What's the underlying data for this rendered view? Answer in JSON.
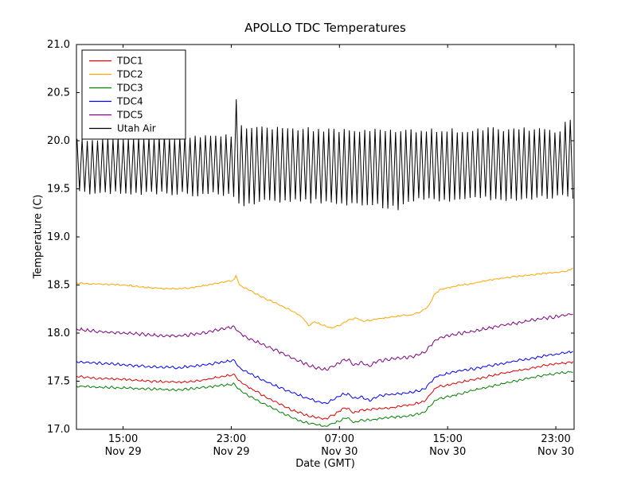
{
  "chart_data": {
    "type": "line",
    "title": "APOLLO TDC Temperatures",
    "xlabel": "Date (GMT)",
    "ylabel": "Temperature (C)",
    "x_unit": "hours since Nov 29 00:00 GMT",
    "xlim": [
      11.55,
      48.35
    ],
    "ylim": [
      17.0,
      21.0
    ],
    "grid": false,
    "legend_position": "upper-left",
    "yticks": [
      {
        "v": 17.0,
        "label": "17.0"
      },
      {
        "v": 17.5,
        "label": "17.5"
      },
      {
        "v": 18.0,
        "label": "18.0"
      },
      {
        "v": 18.5,
        "label": "18.5"
      },
      {
        "v": 19.0,
        "label": "19.0"
      },
      {
        "v": 19.5,
        "label": "19.5"
      },
      {
        "v": 20.0,
        "label": "20.0"
      },
      {
        "v": 20.5,
        "label": "20.5"
      },
      {
        "v": 21.0,
        "label": "21.0"
      }
    ],
    "xticks": [
      {
        "t": 15,
        "time": "15:00",
        "date": "Nov 29"
      },
      {
        "t": 23,
        "time": "23:00",
        "date": "Nov 29"
      },
      {
        "t": 31,
        "time": "07:00",
        "date": "Nov 30"
      },
      {
        "t": 39,
        "time": "15:00",
        "date": "Nov 30"
      },
      {
        "t": 47,
        "time": "23:00",
        "date": "Nov 30"
      }
    ],
    "series": [
      {
        "name": "TDC1",
        "color": "#e00000",
        "ripple": 0.01,
        "noise": 0.012,
        "ripple_period": 0.45,
        "points": [
          [
            11.55,
            17.55
          ],
          [
            13,
            17.53
          ],
          [
            15,
            17.52
          ],
          [
            17,
            17.5
          ],
          [
            19,
            17.49
          ],
          [
            20.5,
            17.5
          ],
          [
            22,
            17.54
          ],
          [
            23.2,
            17.57
          ],
          [
            23.6,
            17.5
          ],
          [
            24.5,
            17.42
          ],
          [
            25.5,
            17.34
          ],
          [
            26.5,
            17.27
          ],
          [
            27.5,
            17.2
          ],
          [
            28.5,
            17.15
          ],
          [
            29.3,
            17.12
          ],
          [
            30,
            17.11
          ],
          [
            30.7,
            17.16
          ],
          [
            31.2,
            17.21
          ],
          [
            31.6,
            17.22
          ],
          [
            32.1,
            17.17
          ],
          [
            32.6,
            17.2
          ],
          [
            33.5,
            17.21
          ],
          [
            34.5,
            17.22
          ],
          [
            35.5,
            17.24
          ],
          [
            36.5,
            17.26
          ],
          [
            37.3,
            17.29
          ],
          [
            37.8,
            17.38
          ],
          [
            38.2,
            17.44
          ],
          [
            39,
            17.46
          ],
          [
            40,
            17.49
          ],
          [
            41,
            17.52
          ],
          [
            42,
            17.55
          ],
          [
            43,
            17.58
          ],
          [
            44,
            17.61
          ],
          [
            45,
            17.63
          ],
          [
            46,
            17.66
          ],
          [
            47,
            17.68
          ],
          [
            48.3,
            17.7
          ]
        ]
      },
      {
        "name": "TDC2",
        "color": "#ffa500",
        "ripple": 0.006,
        "noise": 0.01,
        "ripple_period": 0.45,
        "points": [
          [
            11.55,
            18.52
          ],
          [
            13,
            18.51
          ],
          [
            15,
            18.5
          ],
          [
            17,
            18.47
          ],
          [
            19,
            18.46
          ],
          [
            20.5,
            18.48
          ],
          [
            22,
            18.52
          ],
          [
            23.2,
            18.55
          ],
          [
            23.35,
            18.6
          ],
          [
            23.6,
            18.5
          ],
          [
            24.5,
            18.43
          ],
          [
            25.5,
            18.36
          ],
          [
            26.5,
            18.3
          ],
          [
            27.5,
            18.23
          ],
          [
            28.3,
            18.16
          ],
          [
            28.7,
            18.08
          ],
          [
            29.2,
            18.12
          ],
          [
            29.8,
            18.08
          ],
          [
            30.4,
            18.05
          ],
          [
            31,
            18.08
          ],
          [
            31.6,
            18.13
          ],
          [
            32.2,
            18.16
          ],
          [
            32.8,
            18.12
          ],
          [
            33.5,
            18.14
          ],
          [
            34.5,
            18.16
          ],
          [
            35.5,
            18.18
          ],
          [
            36.3,
            18.19
          ],
          [
            37,
            18.22
          ],
          [
            37.6,
            18.28
          ],
          [
            38,
            18.4
          ],
          [
            38.4,
            18.45
          ],
          [
            39,
            18.47
          ],
          [
            40,
            18.5
          ],
          [
            41,
            18.52
          ],
          [
            42,
            18.55
          ],
          [
            43,
            18.57
          ],
          [
            44,
            18.59
          ],
          [
            45,
            18.6
          ],
          [
            46,
            18.62
          ],
          [
            47,
            18.63
          ],
          [
            47.8,
            18.64
          ],
          [
            48.3,
            18.68
          ]
        ]
      },
      {
        "name": "TDC3",
        "color": "#008000",
        "ripple": 0.01,
        "noise": 0.012,
        "ripple_period": 0.45,
        "points": [
          [
            11.55,
            17.45
          ],
          [
            13,
            17.44
          ],
          [
            15,
            17.43
          ],
          [
            17,
            17.42
          ],
          [
            19,
            17.41
          ],
          [
            20.5,
            17.43
          ],
          [
            22,
            17.45
          ],
          [
            23.2,
            17.47
          ],
          [
            23.6,
            17.41
          ],
          [
            24.5,
            17.33
          ],
          [
            25.5,
            17.26
          ],
          [
            26.5,
            17.19
          ],
          [
            27.5,
            17.12
          ],
          [
            28.5,
            17.07
          ],
          [
            29.3,
            17.05
          ],
          [
            30,
            17.03
          ],
          [
            30.7,
            17.07
          ],
          [
            31.2,
            17.1
          ],
          [
            31.6,
            17.12
          ],
          [
            32.1,
            17.07
          ],
          [
            32.6,
            17.09
          ],
          [
            33.5,
            17.1
          ],
          [
            34.5,
            17.12
          ],
          [
            35.5,
            17.13
          ],
          [
            36.5,
            17.15
          ],
          [
            37.3,
            17.18
          ],
          [
            37.8,
            17.26
          ],
          [
            38.2,
            17.31
          ],
          [
            39,
            17.34
          ],
          [
            40,
            17.37
          ],
          [
            41,
            17.41
          ],
          [
            42,
            17.44
          ],
          [
            43,
            17.47
          ],
          [
            44,
            17.5
          ],
          [
            45,
            17.53
          ],
          [
            46,
            17.56
          ],
          [
            47,
            17.58
          ],
          [
            48.3,
            17.6
          ]
        ]
      },
      {
        "name": "TDC4",
        "color": "#0000ff",
        "ripple": 0.012,
        "noise": 0.012,
        "ripple_period": 0.45,
        "points": [
          [
            11.55,
            17.7
          ],
          [
            13,
            17.69
          ],
          [
            15,
            17.67
          ],
          [
            17,
            17.65
          ],
          [
            19,
            17.64
          ],
          [
            20.5,
            17.66
          ],
          [
            22,
            17.69
          ],
          [
            23.2,
            17.72
          ],
          [
            23.6,
            17.64
          ],
          [
            24.5,
            17.57
          ],
          [
            25.5,
            17.5
          ],
          [
            26.5,
            17.44
          ],
          [
            27.5,
            17.38
          ],
          [
            28.5,
            17.33
          ],
          [
            29.3,
            17.29
          ],
          [
            30,
            17.27
          ],
          [
            30.7,
            17.32
          ],
          [
            31.2,
            17.36
          ],
          [
            31.6,
            17.37
          ],
          [
            32.1,
            17.32
          ],
          [
            32.6,
            17.34
          ],
          [
            33.2,
            17.3
          ],
          [
            33.8,
            17.34
          ],
          [
            34.5,
            17.36
          ],
          [
            35.5,
            17.37
          ],
          [
            36.5,
            17.39
          ],
          [
            37.3,
            17.42
          ],
          [
            37.8,
            17.5
          ],
          [
            38.2,
            17.55
          ],
          [
            39,
            17.58
          ],
          [
            40,
            17.61
          ],
          [
            41,
            17.63
          ],
          [
            42,
            17.66
          ],
          [
            43,
            17.68
          ],
          [
            44,
            17.71
          ],
          [
            45,
            17.73
          ],
          [
            46,
            17.76
          ],
          [
            47,
            17.78
          ],
          [
            48.3,
            17.81
          ]
        ]
      },
      {
        "name": "TDC5",
        "color": "#800080",
        "ripple": 0.015,
        "noise": 0.014,
        "ripple_period": 0.45,
        "points": [
          [
            11.55,
            18.04
          ],
          [
            13,
            18.02
          ],
          [
            15,
            18.0
          ],
          [
            17,
            17.98
          ],
          [
            19,
            17.97
          ],
          [
            20.5,
            17.99
          ],
          [
            22,
            18.03
          ],
          [
            23.2,
            18.07
          ],
          [
            23.6,
            18.0
          ],
          [
            24.5,
            17.93
          ],
          [
            25.5,
            17.87
          ],
          [
            26.5,
            17.81
          ],
          [
            27.5,
            17.74
          ],
          [
            28.5,
            17.68
          ],
          [
            29.3,
            17.64
          ],
          [
            30,
            17.62
          ],
          [
            30.7,
            17.67
          ],
          [
            31.2,
            17.71
          ],
          [
            31.6,
            17.73
          ],
          [
            32.1,
            17.66
          ],
          [
            32.6,
            17.7
          ],
          [
            33.2,
            17.65
          ],
          [
            33.8,
            17.71
          ],
          [
            34.5,
            17.72
          ],
          [
            35.5,
            17.74
          ],
          [
            36.5,
            17.76
          ],
          [
            37.3,
            17.8
          ],
          [
            37.8,
            17.88
          ],
          [
            38.2,
            17.94
          ],
          [
            39,
            17.97
          ],
          [
            40,
            18.0
          ],
          [
            41,
            18.02
          ],
          [
            42,
            18.05
          ],
          [
            43,
            18.08
          ],
          [
            44,
            18.1
          ],
          [
            45,
            18.13
          ],
          [
            46,
            18.15
          ],
          [
            47,
            18.17
          ],
          [
            48.3,
            18.2
          ]
        ]
      },
      {
        "name": "Utah Air",
        "color": "#000000",
        "type": "oscillation",
        "period": 0.38,
        "jitter": 0.05,
        "env_high": [
          [
            11.55,
            20.02
          ],
          [
            23.0,
            20.05
          ],
          [
            23.2,
            20.15
          ],
          [
            23.35,
            20.46
          ],
          [
            23.6,
            20.15
          ],
          [
            26,
            20.13
          ],
          [
            35,
            20.1
          ],
          [
            44,
            20.12
          ],
          [
            47.4,
            20.1
          ],
          [
            47.9,
            20.27
          ],
          [
            48.3,
            20.1
          ]
        ],
        "env_low": [
          [
            11.55,
            19.46
          ],
          [
            23.0,
            19.44
          ],
          [
            23.5,
            19.33
          ],
          [
            25,
            19.36
          ],
          [
            30,
            19.37
          ],
          [
            35.5,
            19.3
          ],
          [
            36,
            19.38
          ],
          [
            44,
            19.4
          ],
          [
            48.3,
            19.42
          ]
        ]
      }
    ]
  }
}
